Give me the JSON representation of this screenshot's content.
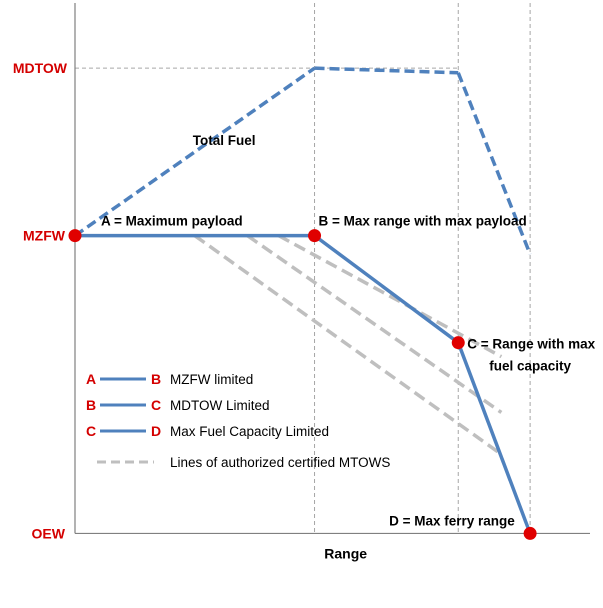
{
  "chart_data": {
    "type": "line",
    "xlabel": "Range",
    "ylabel": "",
    "y_tick_labels": [
      "MDTOW",
      "MZFW",
      "OEW"
    ],
    "x_ticks": [
      0,
      1.0,
      1.6,
      1.9
    ],
    "y_levels": {
      "MDTOW": 1.0,
      "MZFW": 0.64,
      "OEW": 0.0
    },
    "xlim": [
      0,
      2.15
    ],
    "ylim": [
      -0.07,
      1.14
    ],
    "points": [
      {
        "name": "A",
        "label": "A = Maximum payload",
        "x": 0.0,
        "y": 0.64
      },
      {
        "name": "B",
        "label": "B = Max range with max payload",
        "x": 1.0,
        "y": 0.64
      },
      {
        "name": "C",
        "label_lines": [
          "C = Range with max",
          "fuel capacity"
        ],
        "x": 1.6,
        "y": 0.41
      },
      {
        "name": "D",
        "label": "D = Max ferry range",
        "x": 1.9,
        "y": 0.0
      }
    ],
    "payload_range_line": {
      "x": [
        0.0,
        1.0,
        1.6,
        1.9
      ],
      "y": [
        0.64,
        0.64,
        0.41,
        0.0
      ],
      "color": "#4f81bd"
    },
    "total_fuel_line": {
      "label": "Total Fuel",
      "x": [
        0.0,
        1.0,
        1.6,
        1.9
      ],
      "y": [
        0.64,
        1.0,
        0.99,
        0.6
      ],
      "color": "#4f81bd",
      "dashed": true
    },
    "mtow_lines": [
      {
        "x": [
          0.5,
          1.78
        ],
        "y": [
          0.64,
          0.17
        ]
      },
      {
        "x": [
          0.72,
          1.78
        ],
        "y": [
          0.64,
          0.26
        ]
      },
      {
        "x": [
          0.85,
          1.78
        ],
        "y": [
          0.64,
          0.38
        ]
      }
    ],
    "mtow_color": "#bfbfbf",
    "reference_color": "#a6a6a6",
    "marker_color": "#e00000",
    "legend": {
      "placement": "lower-left",
      "entries": [
        {
          "from": "A",
          "to": "B",
          "text": "MZFW limited"
        },
        {
          "from": "B",
          "to": "C",
          "text": "MDTOW Limited"
        },
        {
          "from": "C",
          "to": "D",
          "text": "Max Fuel Capacity Limited"
        },
        {
          "from": "",
          "to": "",
          "text": "Lines of authorized certified MTOWS",
          "dashed": true
        }
      ]
    },
    "grid": false
  }
}
